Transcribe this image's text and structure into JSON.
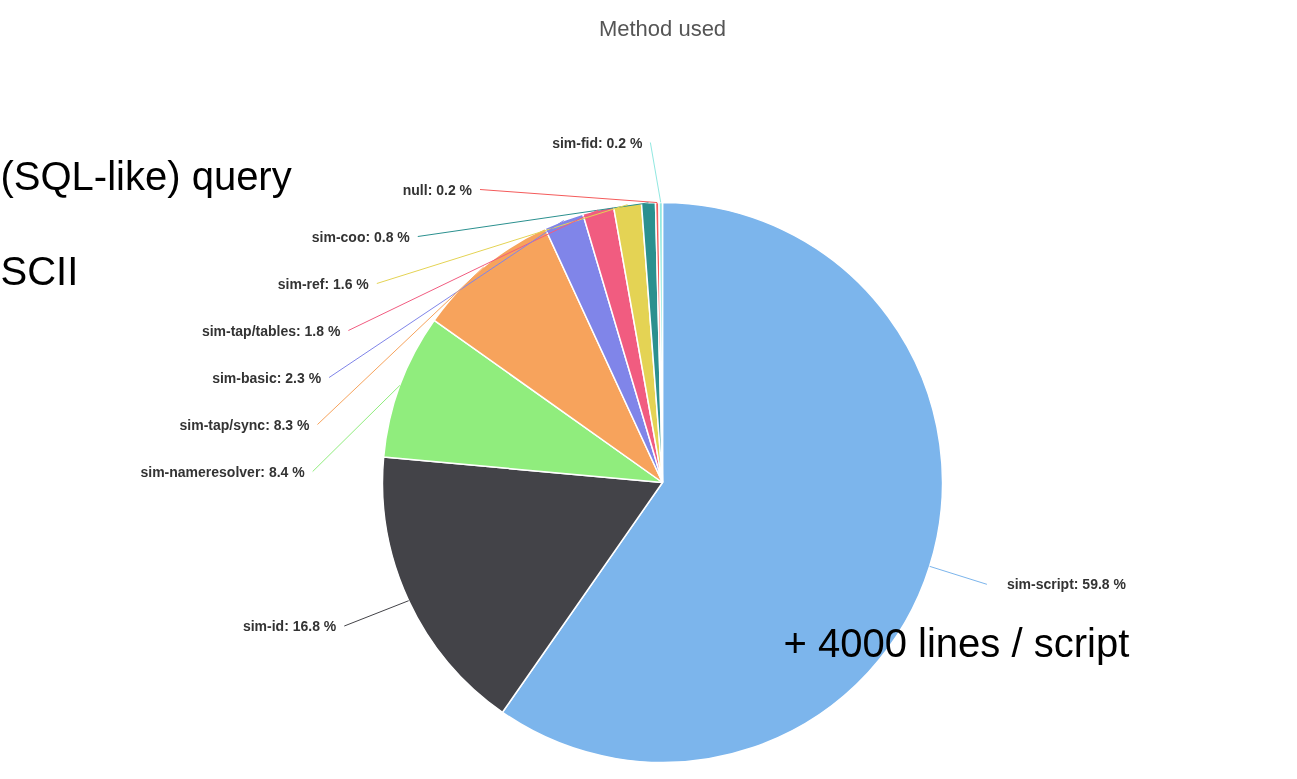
{
  "chart_data": {
    "type": "pie",
    "title": "Method used",
    "categories": [
      "sim-script",
      "sim-id",
      "sim-nameresolver",
      "sim-tap/sync",
      "sim-basic",
      "sim-tap/tables",
      "sim-ref",
      "sim-coo",
      "null",
      "sim-fid"
    ],
    "values": [
      59.8,
      16.8,
      8.4,
      8.3,
      2.3,
      1.8,
      1.6,
      0.8,
      0.2,
      0.2
    ],
    "colors": [
      "#7cb5ec",
      "#434348",
      "#90ed7d",
      "#f7a35c",
      "#8085e9",
      "#f15c80",
      "#e4d354",
      "#2b908f",
      "#f45b5b",
      "#91e8e1"
    ],
    "value_labels": [
      "59.8 %",
      "16.8 %",
      "8.4 %",
      "8.3 %",
      "2.3 %",
      "1.8 %",
      "1.6 %",
      "0.8 %",
      "0.2 %",
      "0.2 %"
    ],
    "annotations": [
      "(SQL-like) query",
      "SCII",
      "+ 4000 lines / script"
    ]
  }
}
